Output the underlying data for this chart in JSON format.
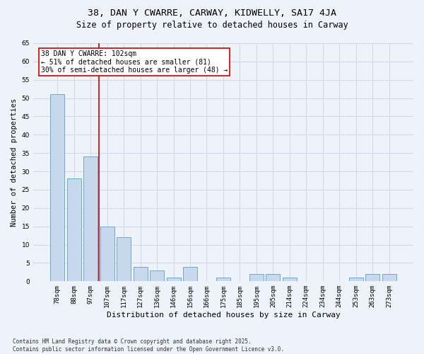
{
  "title1": "38, DAN Y CWARRE, CARWAY, KIDWELLY, SA17 4JA",
  "title2": "Size of property relative to detached houses in Carway",
  "xlabel": "Distribution of detached houses by size in Carway",
  "ylabel": "Number of detached properties",
  "categories": [
    "78sqm",
    "88sqm",
    "97sqm",
    "107sqm",
    "117sqm",
    "127sqm",
    "136sqm",
    "146sqm",
    "156sqm",
    "166sqm",
    "175sqm",
    "185sqm",
    "195sqm",
    "205sqm",
    "214sqm",
    "224sqm",
    "234sqm",
    "244sqm",
    "253sqm",
    "263sqm",
    "273sqm"
  ],
  "values": [
    51,
    28,
    34,
    15,
    12,
    4,
    3,
    1,
    4,
    0,
    1,
    0,
    2,
    2,
    1,
    0,
    0,
    0,
    1,
    2,
    2
  ],
  "bar_color": "#c9d9ed",
  "bar_edge_color": "#6fa8d0",
  "grid_color": "#d0d8e8",
  "background_color": "#eef2f9",
  "vline_x": 2.5,
  "vline_color": "#cc0000",
  "annotation_text": "38 DAN Y CWARRE: 102sqm\n← 51% of detached houses are smaller (81)\n30% of semi-detached houses are larger (48) →",
  "annotation_box_color": "#ffffff",
  "annotation_box_edge": "#cc0000",
  "ylim": [
    0,
    65
  ],
  "yticks": [
    0,
    5,
    10,
    15,
    20,
    25,
    30,
    35,
    40,
    45,
    50,
    55,
    60,
    65
  ],
  "footnote": "Contains HM Land Registry data © Crown copyright and database right 2025.\nContains public sector information licensed under the Open Government Licence v3.0.",
  "title1_fontsize": 9.5,
  "title2_fontsize": 8.5,
  "xlabel_fontsize": 8,
  "ylabel_fontsize": 7.5,
  "tick_fontsize": 6.5,
  "annotation_fontsize": 7,
  "footnote_fontsize": 5.5
}
